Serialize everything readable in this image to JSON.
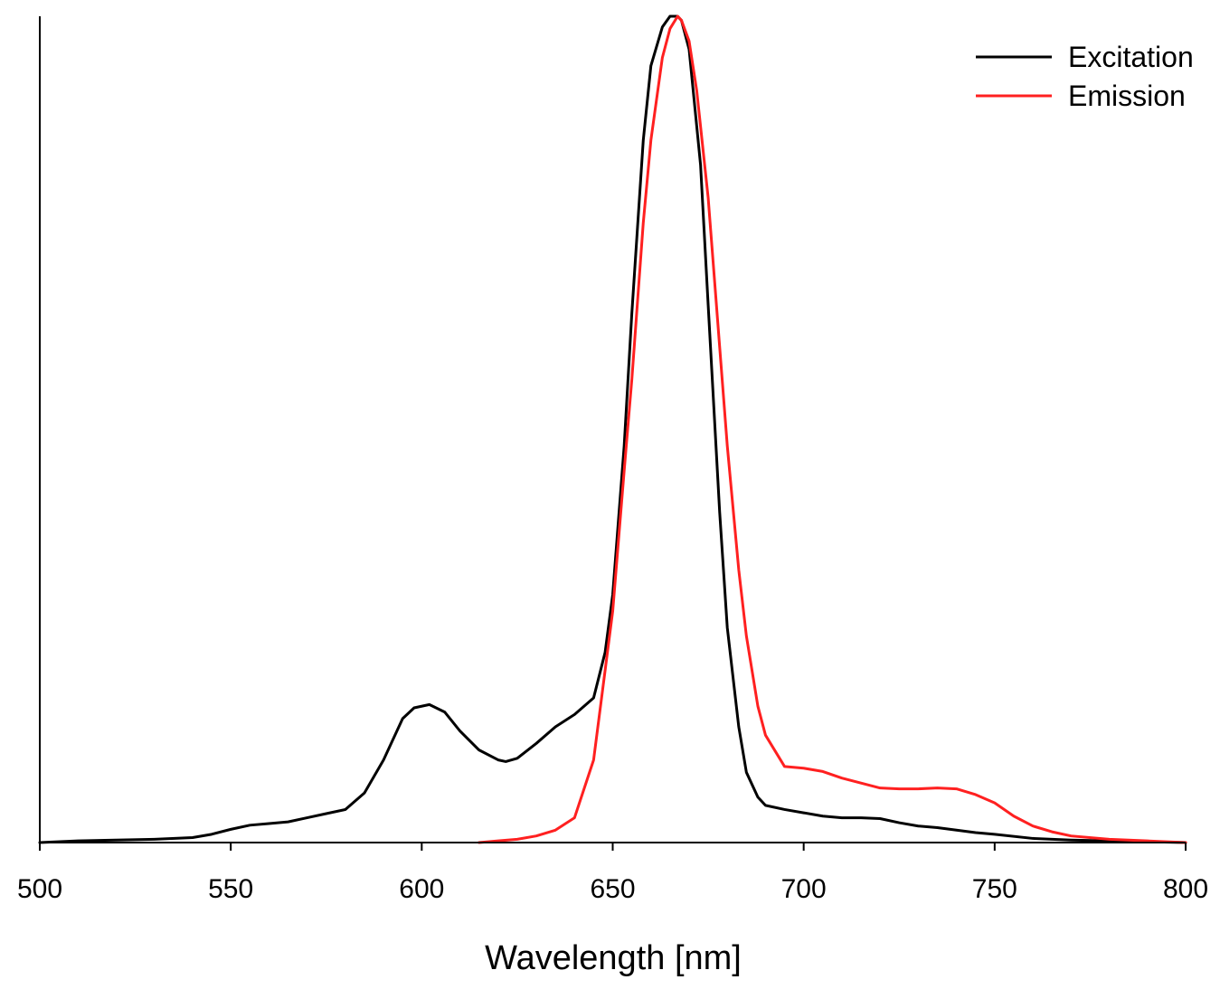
{
  "chart_data": {
    "type": "line",
    "title": "",
    "xlabel": "Wavelength [nm]",
    "ylabel": "",
    "xlim": [
      500,
      800
    ],
    "ylim": [
      0,
      1.0
    ],
    "xticks": [
      500,
      550,
      600,
      650,
      700,
      750,
      800
    ],
    "xtick_labels": [
      "500",
      "550",
      "600",
      "650",
      "700",
      "750",
      "800"
    ],
    "legend_position": "top-right",
    "series": [
      {
        "name": "Excitation",
        "color": "#000000",
        "x": [
          500,
          510,
          520,
          530,
          540,
          545,
          550,
          555,
          560,
          565,
          570,
          575,
          580,
          585,
          590,
          595,
          598,
          602,
          606,
          610,
          615,
          620,
          622,
          625,
          630,
          635,
          640,
          645,
          648,
          650,
          653,
          655,
          658,
          660,
          663,
          665,
          667,
          668,
          670,
          673,
          675,
          678,
          680,
          683,
          685,
          688,
          690,
          695,
          700,
          705,
          710,
          715,
          720,
          725,
          730,
          735,
          740,
          745,
          750,
          760,
          770,
          780,
          790,
          800
        ],
        "y": [
          0.0,
          0.002,
          0.003,
          0.004,
          0.006,
          0.01,
          0.016,
          0.021,
          0.023,
          0.025,
          0.03,
          0.035,
          0.04,
          0.06,
          0.1,
          0.15,
          0.163,
          0.167,
          0.158,
          0.135,
          0.112,
          0.1,
          0.098,
          0.102,
          0.12,
          0.14,
          0.155,
          0.175,
          0.23,
          0.3,
          0.48,
          0.64,
          0.85,
          0.94,
          0.987,
          1.0,
          1.0,
          0.995,
          0.96,
          0.82,
          0.65,
          0.4,
          0.26,
          0.14,
          0.085,
          0.055,
          0.045,
          0.04,
          0.036,
          0.032,
          0.03,
          0.03,
          0.029,
          0.024,
          0.02,
          0.018,
          0.015,
          0.012,
          0.01,
          0.005,
          0.003,
          0.002,
          0.001,
          0.0
        ]
      },
      {
        "name": "Emission",
        "color": "#ff2020",
        "x": [
          615,
          620,
          625,
          630,
          635,
          640,
          645,
          650,
          653,
          655,
          658,
          660,
          663,
          665,
          667,
          668,
          670,
          672,
          675,
          678,
          680,
          683,
          685,
          688,
          690,
          695,
          700,
          705,
          710,
          715,
          720,
          725,
          730,
          735,
          740,
          745,
          750,
          755,
          760,
          765,
          770,
          780,
          790,
          800
        ],
        "y": [
          0.0,
          0.002,
          0.004,
          0.008,
          0.015,
          0.03,
          0.1,
          0.28,
          0.45,
          0.56,
          0.75,
          0.85,
          0.95,
          0.985,
          1.0,
          0.995,
          0.97,
          0.91,
          0.78,
          0.6,
          0.48,
          0.33,
          0.25,
          0.165,
          0.13,
          0.092,
          0.09,
          0.086,
          0.078,
          0.072,
          0.066,
          0.065,
          0.065,
          0.066,
          0.065,
          0.058,
          0.048,
          0.032,
          0.02,
          0.013,
          0.008,
          0.004,
          0.002,
          0.0
        ]
      }
    ]
  }
}
